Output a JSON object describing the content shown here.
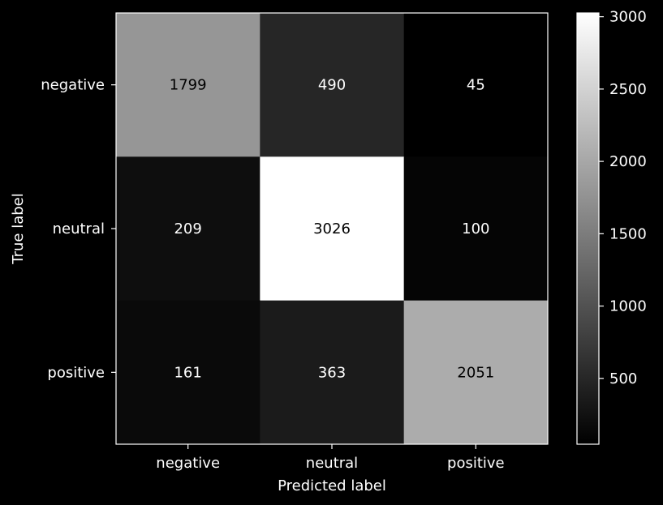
{
  "chart_data": {
    "type": "heatmap",
    "title": "",
    "xlabel": "Predicted label",
    "ylabel": "True label",
    "x_categories": [
      "negative",
      "neutral",
      "positive"
    ],
    "y_categories": [
      "negative",
      "neutral",
      "positive"
    ],
    "matrix": [
      [
        1799,
        490,
        45
      ],
      [
        209,
        3026,
        100
      ],
      [
        161,
        363,
        2051
      ]
    ],
    "colormap": "gray",
    "value_range": [
      45,
      3026
    ],
    "colorbar_ticks": [
      500,
      1000,
      1500,
      2000,
      2500,
      3000
    ],
    "colors": {
      "background": "#000000",
      "foreground": "#ffffff",
      "cmap_low": "#000000",
      "cmap_high": "#ffffff"
    }
  }
}
